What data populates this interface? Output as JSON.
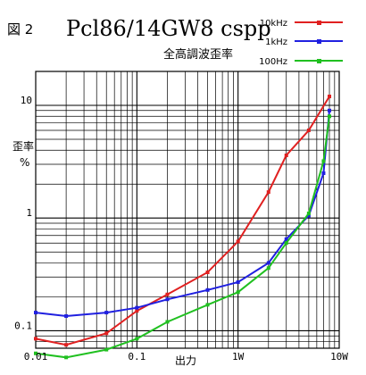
{
  "figure_label": "図 2",
  "chart_data": {
    "type": "line",
    "title": "Pcl86/14GW8 cspp",
    "subtitle": "全高調波歪率",
    "xlabel": "出力",
    "ylabel_line1": "歪率",
    "ylabel_line2": "%",
    "x_scale": "log",
    "y_scale": "log",
    "xlim": [
      0.01,
      10
    ],
    "ylim": [
      0.07,
      20
    ],
    "x_tick_labels": [
      "0.01",
      "0.1",
      "1W",
      "10W"
    ],
    "y_tick_labels": [
      "10",
      "1",
      "0.1"
    ],
    "grid": true,
    "legend_position": "top-right",
    "series": [
      {
        "name": "10kHz",
        "color": "#e02020",
        "points": [
          [
            0.01,
            0.085
          ],
          [
            0.02,
            0.075
          ],
          [
            0.05,
            0.095
          ],
          [
            0.1,
            0.15
          ],
          [
            0.2,
            0.21
          ],
          [
            0.5,
            0.33
          ],
          [
            1,
            0.62
          ],
          [
            2,
            1.7
          ],
          [
            3,
            3.6
          ],
          [
            5,
            6.0
          ],
          [
            8,
            12.0
          ]
        ]
      },
      {
        "name": "1kHz",
        "color": "#2020e0",
        "points": [
          [
            0.01,
            0.145
          ],
          [
            0.02,
            0.135
          ],
          [
            0.05,
            0.145
          ],
          [
            0.1,
            0.16
          ],
          [
            0.2,
            0.19
          ],
          [
            0.5,
            0.23
          ],
          [
            1,
            0.27
          ],
          [
            2,
            0.4
          ],
          [
            3,
            0.65
          ],
          [
            5,
            1.05
          ],
          [
            7,
            2.5
          ],
          [
            8,
            9.0
          ]
        ]
      },
      {
        "name": "100Hz",
        "color": "#20c020",
        "points": [
          [
            0.01,
            0.063
          ],
          [
            0.02,
            0.058
          ],
          [
            0.05,
            0.068
          ],
          [
            0.1,
            0.085
          ],
          [
            0.2,
            0.12
          ],
          [
            0.5,
            0.17
          ],
          [
            1,
            0.22
          ],
          [
            2,
            0.36
          ],
          [
            3,
            0.6
          ],
          [
            5,
            1.1
          ],
          [
            7,
            3.2
          ],
          [
            8,
            8.0
          ]
        ]
      }
    ]
  }
}
